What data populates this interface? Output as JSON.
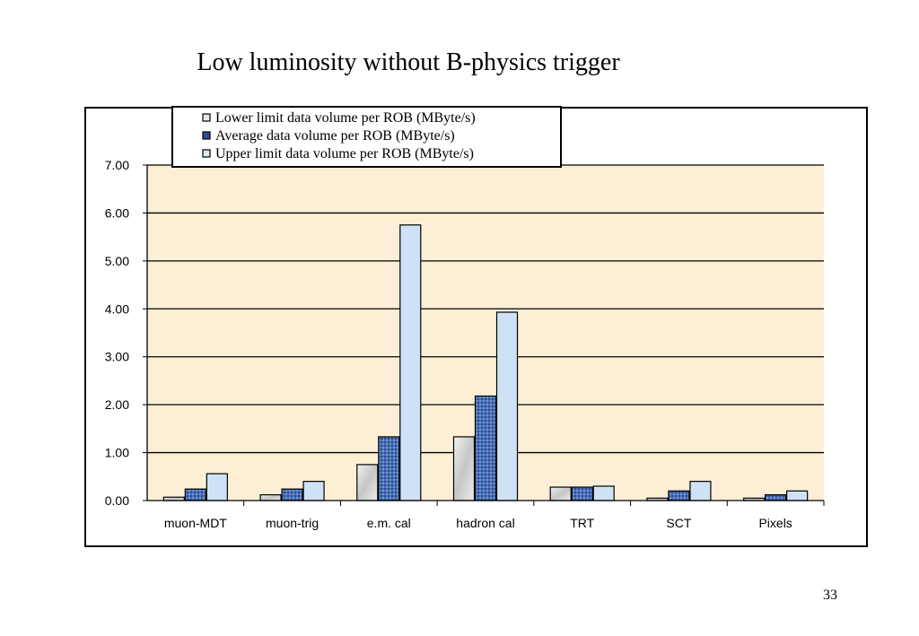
{
  "slide": {
    "title": "Low luminosity without B-physics trigger",
    "page_number": "33"
  },
  "chart_data": {
    "type": "bar",
    "categories": [
      "muon-MDT",
      "muon-trig",
      "e.m. cal",
      "hadron cal",
      "TRT",
      "SCT",
      "Pixels"
    ],
    "series": [
      {
        "name": "Lower limit data volume per ROB (MByte/s)",
        "values": [
          0.07,
          0.12,
          0.75,
          1.33,
          0.28,
          0.05,
          0.05
        ],
        "color": "#d9d9d9"
      },
      {
        "name": "Average data volume per ROB (MByte/s)",
        "values": [
          0.24,
          0.24,
          1.33,
          2.18,
          0.28,
          0.2,
          0.12
        ],
        "color": "#4a6fb8"
      },
      {
        "name": "Upper limit data volume per ROB (MByte/s)",
        "values": [
          0.56,
          0.4,
          5.75,
          3.93,
          0.3,
          0.4,
          0.2
        ],
        "color": "#cfe2f5"
      }
    ],
    "yticks": [
      "0.00",
      "1.00",
      "2.00",
      "3.00",
      "4.00",
      "5.00",
      "6.00",
      "7.00"
    ],
    "ylim": [
      0,
      7
    ],
    "grid": true,
    "legend_position": "top-left",
    "plot_background": "#fcefd6"
  }
}
